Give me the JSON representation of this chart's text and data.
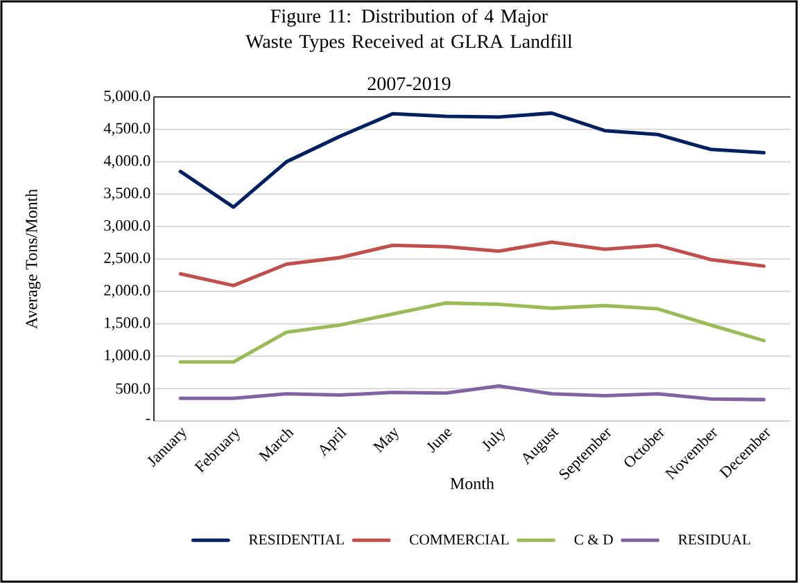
{
  "chart_data": {
    "type": "line",
    "title": "Figure 11: Distribution of 4 Major Waste Types Received at GLRA Landfill",
    "subtitle": "2007-2019",
    "xlabel": "Month",
    "ylabel": "Average Tons/Month",
    "categories": [
      "January",
      "February",
      "March",
      "April",
      "May",
      "June",
      "July",
      "August",
      "September",
      "October",
      "November",
      "December"
    ],
    "series": [
      {
        "name": "RESIDENTIAL",
        "color": "#002060",
        "values": [
          3850,
          3300,
          4000,
          4390,
          4740,
          4700,
          4690,
          4750,
          4480,
          4420,
          4190,
          4140
        ]
      },
      {
        "name": "COMMERCIAL",
        "color": "#c0504d",
        "values": [
          2270,
          2090,
          2420,
          2520,
          2710,
          2690,
          2620,
          2760,
          2650,
          2710,
          2490,
          2390
        ]
      },
      {
        "name": "C & D",
        "color": "#9bbb59",
        "values": [
          910,
          910,
          1370,
          1480,
          1650,
          1820,
          1800,
          1740,
          1780,
          1730,
          1480,
          1240
        ]
      },
      {
        "name": "RESIDUAL",
        "color": "#8064a2",
        "values": [
          350,
          350,
          420,
          400,
          440,
          430,
          540,
          420,
          390,
          420,
          340,
          330
        ]
      }
    ],
    "ylim": [
      0,
      5000
    ],
    "yticks": [
      {
        "value": 0,
        "label": "-"
      },
      {
        "value": 500,
        "label": "500.0"
      },
      {
        "value": 1000,
        "label": "1,000.0"
      },
      {
        "value": 1500,
        "label": "1,500.0"
      },
      {
        "value": 2000,
        "label": "2,000.0"
      },
      {
        "value": 2500,
        "label": "2,500.0"
      },
      {
        "value": 3000,
        "label": "3,000.0"
      },
      {
        "value": 3500,
        "label": "3,500.0"
      },
      {
        "value": 4000,
        "label": "4,000.0"
      },
      {
        "value": 4500,
        "label": "4,500.0"
      },
      {
        "value": 5000,
        "label": "5,000.0"
      }
    ],
    "grid": "y",
    "legend": "bottom",
    "marker": "none",
    "line_style": "solid"
  }
}
